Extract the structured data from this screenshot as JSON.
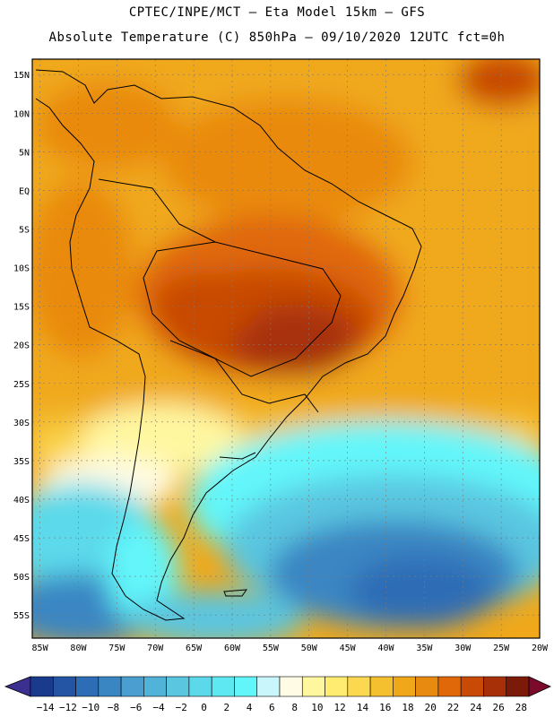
{
  "header": {
    "line1": "CPTEC/INPE/MCT –  Eta Model 15km – GFS",
    "line2": "Absolute Temperature (C) 850hPa – 09/10/2020 12UTC fct=0h"
  },
  "map": {
    "lat_labels": [
      "15N",
      "10N",
      "5N",
      "EQ",
      "5S",
      "10S",
      "15S",
      "20S",
      "25S",
      "30S",
      "35S",
      "40S",
      "45S",
      "50S",
      "55S"
    ],
    "lon_labels": [
      "85W",
      "80W",
      "75W",
      "70W",
      "65W",
      "60W",
      "55W",
      "50W",
      "45W",
      "40W",
      "35W",
      "30W",
      "25W",
      "20W"
    ],
    "lat_range": [
      17,
      -58
    ],
    "lon_range": [
      -86,
      -20
    ]
  },
  "colorbar": {
    "labels": [
      "-14",
      "-12",
      "-10",
      "-8",
      "-6",
      "-4",
      "-2",
      "0",
      "2",
      "4",
      "6",
      "8",
      "10",
      "12",
      "14",
      "16",
      "18",
      "20",
      "22",
      "24",
      "26",
      "28"
    ],
    "colors": [
      "#1a3a8c",
      "#2455a4",
      "#2d6db5",
      "#3a86c3",
      "#4a9fd0",
      "#52b3d9",
      "#5ac6e0",
      "#5bd9ea",
      "#5ee8f2",
      "#62f6fa",
      "#c8f6fb",
      "#fffbe5",
      "#fff7a0",
      "#ffec70",
      "#fbd850",
      "#f4c030",
      "#f0a81a",
      "#e98a10",
      "#e06808",
      "#c84a06",
      "#a83008",
      "#7c1a0a"
    ]
  }
}
